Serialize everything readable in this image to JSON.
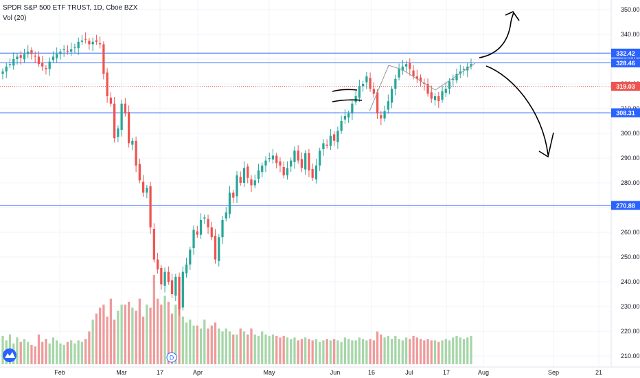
{
  "header": {
    "symbol_line": "SPDR S&P 500 ETF TRUST, 1D, Cboe BZX",
    "volume_line": "Vol (20)"
  },
  "chart_data": {
    "type": "candlestick",
    "y_axis": {
      "min": 205,
      "max": 353,
      "ticks": [
        210,
        220,
        230,
        240,
        250,
        260,
        270,
        280,
        290,
        300,
        310,
        320,
        330,
        340,
        350
      ]
    },
    "x_axis": {
      "labels": [
        "Feb",
        "Mar",
        "17",
        "Apr",
        "May",
        "Jun",
        "16",
        "Jul",
        "17",
        "Aug",
        "Sep",
        "21"
      ]
    },
    "horizontal_levels": [
      {
        "value": 332.42,
        "label": "332.42",
        "style": "solid",
        "color": "#2962ff"
      },
      {
        "value": 328.46,
        "label": "328.46",
        "style": "solid",
        "color": "#2962ff"
      },
      {
        "value": 319.03,
        "label": "319.03",
        "style": "dotted",
        "color": "#ef5350"
      },
      {
        "value": 308.31,
        "label": "308.31",
        "style": "solid",
        "color": "#2962ff"
      },
      {
        "value": 270.88,
        "label": "270.88",
        "style": "solid",
        "color": "#2962ff"
      }
    ],
    "close_series": [
      325,
      327,
      328,
      330,
      331,
      330.5,
      332,
      333,
      332,
      331,
      328,
      327,
      326,
      329,
      331,
      332,
      333,
      334,
      333,
      334,
      335,
      337,
      337.5,
      338,
      336,
      337,
      337,
      336,
      324,
      315,
      312,
      298,
      302,
      312,
      308,
      296,
      297,
      287,
      281,
      276,
      278,
      262,
      249,
      245,
      239,
      244,
      240,
      235,
      242,
      229,
      244,
      247,
      253,
      261,
      259,
      265,
      266,
      262,
      258,
      249,
      258,
      265,
      268,
      276,
      274,
      283,
      280,
      286,
      282,
      279,
      281,
      285,
      287,
      289,
      290,
      291,
      288,
      287,
      283,
      286,
      289,
      293,
      289,
      286,
      292,
      285,
      282,
      287,
      293,
      296,
      295,
      299,
      297,
      301,
      305,
      307,
      308,
      312,
      315,
      319,
      320,
      323,
      318,
      316,
      308,
      306,
      309,
      313,
      318,
      322,
      326,
      327,
      328,
      326,
      323,
      322,
      321,
      320,
      316,
      314,
      315,
      313,
      317,
      318,
      321,
      322,
      324,
      325,
      326,
      327,
      328
    ],
    "volume_series": [
      95,
      80,
      100,
      70,
      90,
      75,
      85,
      75,
      65,
      60,
      100,
      75,
      85,
      70,
      90,
      80,
      70,
      65,
      75,
      80,
      70,
      80,
      75,
      85,
      110,
      150,
      170,
      190,
      200,
      160,
      220,
      150,
      180,
      200,
      200,
      210,
      190,
      180,
      220,
      160,
      200,
      190,
      300,
      220,
      200,
      230,
      210,
      170,
      200,
      190,
      160,
      140,
      150,
      130,
      130,
      120,
      150,
      120,
      130,
      140,
      120,
      110,
      120,
      110,
      100,
      100,
      120,
      110,
      100,
      120,
      100,
      95,
      110,
      100,
      95,
      100,
      95,
      90,
      95,
      90,
      85,
      90,
      80,
      85,
      90,
      85,
      80,
      85,
      75,
      80,
      85,
      80,
      85,
      80,
      75,
      90,
      85,
      80,
      80,
      90,
      85,
      80,
      85,
      80,
      110,
      100,
      90,
      95,
      85,
      95,
      85,
      80,
      90,
      85,
      95,
      90,
      85,
      80,
      85,
      80,
      80,
      75,
      80,
      85,
      80,
      90,
      95,
      90,
      85,
      90,
      95,
      80,
      70
    ]
  },
  "colors": {
    "up": "#26a69a",
    "down": "#ef5350",
    "vol_up": "#a5d6a7",
    "vol_down": "#ef9a9a",
    "level": "#2962ff",
    "grid": "#f0f3fa",
    "axis_text": "#131722"
  },
  "icons": {
    "logo": "tradingview-logo-icon",
    "dividend": "dividend-marker-icon"
  },
  "dividend_marker": {
    "label": "D"
  }
}
